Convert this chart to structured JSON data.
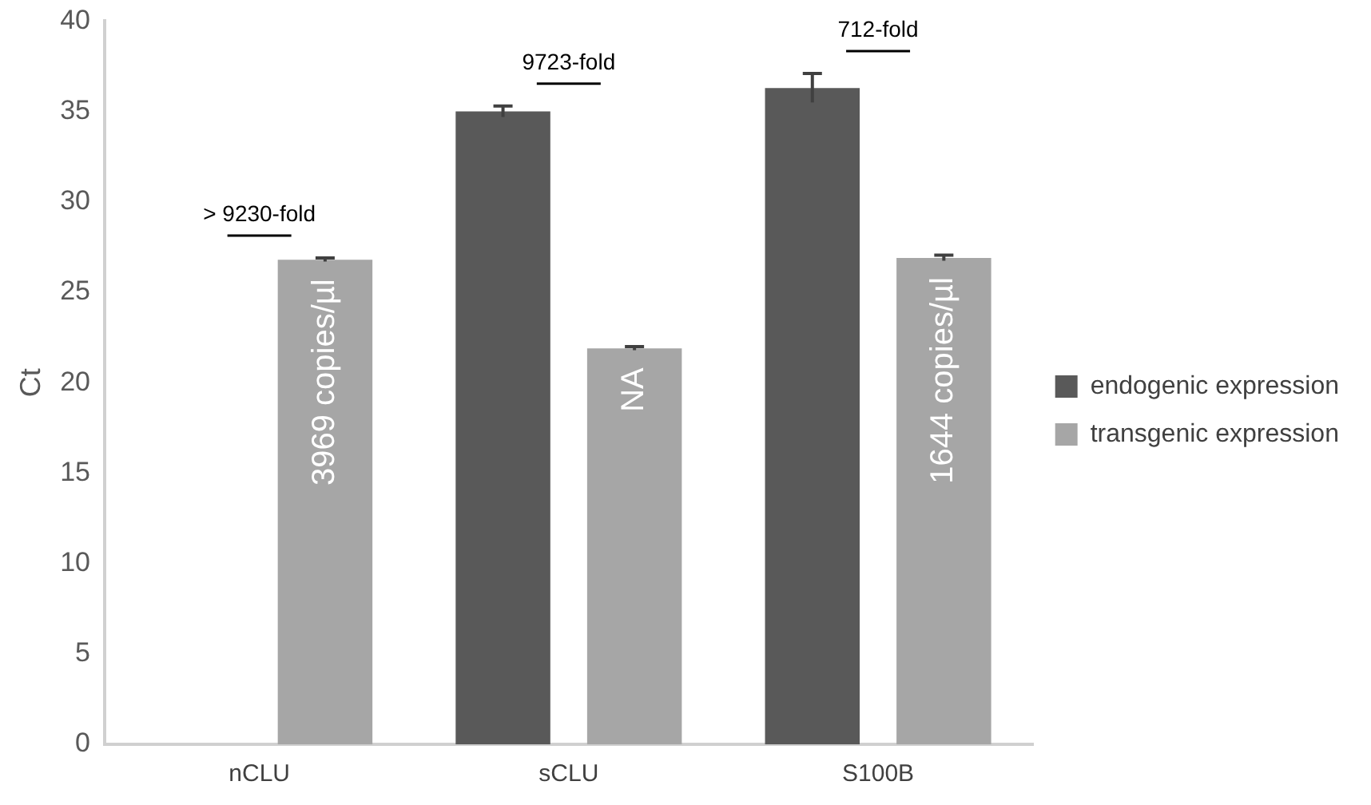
{
  "chart_data": {
    "type": "bar",
    "ylabel": "Ct",
    "categories": [
      "nCLU",
      "sCLU",
      "S100B"
    ],
    "series": [
      {
        "name": "endogenic expression",
        "color": "#595959",
        "values": [
          null,
          35.0,
          36.3
        ],
        "errors": [
          null,
          0.3,
          0.8
        ]
      },
      {
        "name": "transgenic expression",
        "color": "#a6a6a6",
        "values": [
          26.8,
          21.9,
          26.9
        ],
        "errors": [
          0.1,
          0.1,
          0.15
        ]
      }
    ],
    "ylim": [
      0,
      40
    ],
    "yticks": [
      0,
      5,
      10,
      15,
      20,
      25,
      30,
      35,
      40
    ],
    "grid": false,
    "legend": "right",
    "annotations": [
      "> 9230-fold",
      "9723-fold",
      "712-fold",
      "3969 copies/µl",
      "NA",
      "1644 copies/µl"
    ]
  }
}
